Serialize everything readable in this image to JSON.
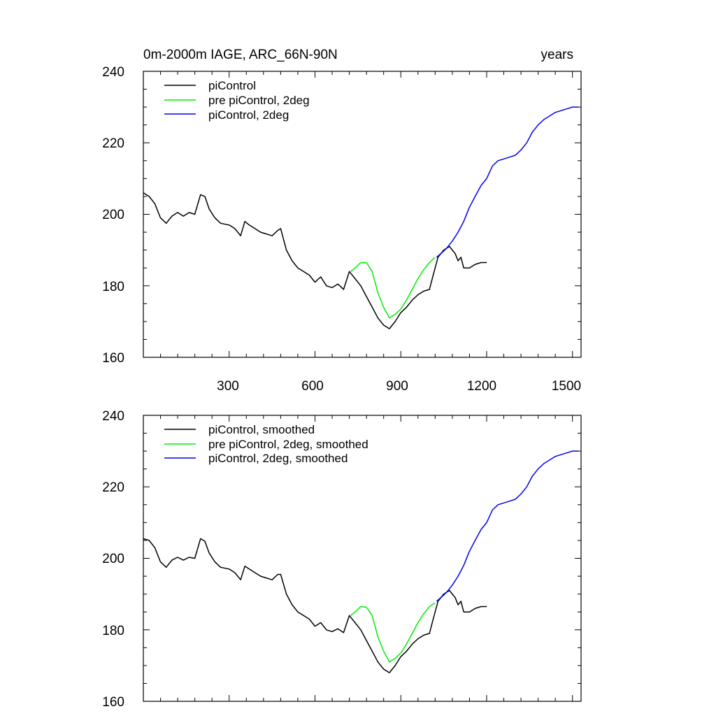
{
  "chart_data": [
    {
      "type": "line",
      "title_left": "0m-2000m IAGE, ARC_66N-90N",
      "title_right": "years",
      "xlabel": "",
      "ylabel": "",
      "xlim": [
        0,
        1530
      ],
      "ylim": [
        160,
        240
      ],
      "x_ticks": [
        300,
        600,
        900,
        1200,
        1500
      ],
      "x_tick_labels": [
        "300",
        "600",
        "900",
        "1200",
        "1500"
      ],
      "y_ticks": [
        160,
        180,
        200,
        220,
        240
      ],
      "y_tick_labels": [
        "160",
        "180",
        "200",
        "220",
        "240"
      ],
      "legend_position": "top-left",
      "series": [
        {
          "name": "piControl",
          "color": "#000000",
          "points": [
            [
              0,
              206
            ],
            [
              20,
              205
            ],
            [
              40,
              203
            ],
            [
              60,
              199
            ],
            [
              80,
              197.5
            ],
            [
              100,
              199.5
            ],
            [
              120,
              200.5
            ],
            [
              140,
              199.5
            ],
            [
              160,
              200.5
            ],
            [
              180,
              200
            ],
            [
              200,
              205.5
            ],
            [
              215,
              205
            ],
            [
              230,
              201.5
            ],
            [
              250,
              199
            ],
            [
              270,
              197.5
            ],
            [
              300,
              197
            ],
            [
              320,
              196
            ],
            [
              340,
              194
            ],
            [
              355,
              198
            ],
            [
              370,
              197
            ],
            [
              390,
              196
            ],
            [
              410,
              195
            ],
            [
              430,
              194.5
            ],
            [
              450,
              194
            ],
            [
              470,
              195.5
            ],
            [
              480,
              196
            ],
            [
              500,
              190
            ],
            [
              520,
              187
            ],
            [
              540,
              185
            ],
            [
              560,
              184
            ],
            [
              580,
              183
            ],
            [
              600,
              181
            ],
            [
              620,
              182.5
            ],
            [
              640,
              180
            ],
            [
              660,
              179.5
            ],
            [
              680,
              180.5
            ],
            [
              700,
              179
            ],
            [
              720,
              184
            ],
            [
              740,
              182
            ],
            [
              760,
              180
            ],
            [
              780,
              177
            ],
            [
              800,
              174
            ],
            [
              820,
              171
            ],
            [
              840,
              169
            ],
            [
              860,
              168
            ],
            [
              880,
              170
            ],
            [
              900,
              172.5
            ],
            [
              920,
              174
            ],
            [
              940,
              176
            ],
            [
              960,
              177.5
            ],
            [
              980,
              178.5
            ],
            [
              1000,
              179
            ],
            [
              1010,
              182
            ],
            [
              1030,
              188
            ],
            [
              1050,
              190
            ],
            [
              1070,
              191
            ],
            [
              1080,
              190
            ],
            [
              1090,
              189
            ],
            [
              1100,
              187
            ],
            [
              1110,
              188
            ],
            [
              1120,
              185
            ],
            [
              1140,
              185
            ],
            [
              1160,
              186
            ],
            [
              1180,
              186.5
            ],
            [
              1200,
              186.5
            ]
          ]
        },
        {
          "name": "pre piControl, 2deg",
          "color": "#00ee00",
          "points": [
            [
              725,
              184
            ],
            [
              740,
              185
            ],
            [
              760,
              186.5
            ],
            [
              780,
              186.5
            ],
            [
              800,
              184
            ],
            [
              820,
              178
            ],
            [
              840,
              174
            ],
            [
              860,
              171
            ],
            [
              880,
              172
            ],
            [
              900,
              173.5
            ],
            [
              920,
              176
            ],
            [
              940,
              179
            ],
            [
              960,
              182
            ],
            [
              980,
              184.5
            ],
            [
              1000,
              186.5
            ],
            [
              1020,
              188
            ]
          ]
        },
        {
          "name": "piControl, 2deg",
          "color": "#0000ee",
          "points": [
            [
              1025,
              188
            ],
            [
              1040,
              189
            ],
            [
              1060,
              190.5
            ],
            [
              1080,
              192.5
            ],
            [
              1100,
              195
            ],
            [
              1120,
              198
            ],
            [
              1140,
              202
            ],
            [
              1160,
              205
            ],
            [
              1180,
              208
            ],
            [
              1200,
              210
            ],
            [
              1220,
              213.5
            ],
            [
              1240,
              215
            ],
            [
              1260,
              215.5
            ],
            [
              1280,
              216
            ],
            [
              1300,
              216.5
            ],
            [
              1320,
              218
            ],
            [
              1340,
              220
            ],
            [
              1360,
              223
            ],
            [
              1380,
              225
            ],
            [
              1400,
              226.5
            ],
            [
              1420,
              227.5
            ],
            [
              1440,
              228.5
            ],
            [
              1460,
              229
            ],
            [
              1480,
              229.5
            ],
            [
              1500,
              230
            ],
            [
              1520,
              230
            ]
          ]
        }
      ]
    },
    {
      "type": "line",
      "xlabel": "",
      "ylabel": "",
      "xlim": [
        0,
        1530
      ],
      "ylim": [
        160,
        240
      ],
      "x_ticks": [
        300,
        600,
        900,
        1200,
        1500
      ],
      "y_ticks": [
        160,
        180,
        200,
        220,
        240
      ],
      "y_tick_labels": [
        "160",
        "180",
        "200",
        "220",
        "240"
      ],
      "legend_position": "top-left",
      "series": [
        {
          "name": "piControl, smoothed",
          "color": "#000000",
          "points": [
            [
              0,
              205.5
            ],
            [
              20,
              205
            ],
            [
              40,
              203
            ],
            [
              60,
              199
            ],
            [
              80,
              197.5
            ],
            [
              100,
              199.5
            ],
            [
              120,
              200.3
            ],
            [
              140,
              199.5
            ],
            [
              160,
              200.3
            ],
            [
              180,
              200
            ],
            [
              200,
              205.5
            ],
            [
              215,
              204.8
            ],
            [
              230,
              201.5
            ],
            [
              250,
              199
            ],
            [
              270,
              197.5
            ],
            [
              300,
              197
            ],
            [
              320,
              196
            ],
            [
              340,
              194
            ],
            [
              355,
              197.8
            ],
            [
              370,
              197
            ],
            [
              390,
              196
            ],
            [
              410,
              195
            ],
            [
              430,
              194.5
            ],
            [
              450,
              194
            ],
            [
              470,
              195.5
            ],
            [
              480,
              195.5
            ],
            [
              500,
              190
            ],
            [
              520,
              187
            ],
            [
              540,
              185
            ],
            [
              560,
              184
            ],
            [
              580,
              183
            ],
            [
              600,
              181
            ],
            [
              620,
              182
            ],
            [
              640,
              180
            ],
            [
              660,
              179.5
            ],
            [
              680,
              180.3
            ],
            [
              700,
              179.2
            ],
            [
              720,
              184
            ],
            [
              740,
              182
            ],
            [
              760,
              180
            ],
            [
              780,
              177
            ],
            [
              800,
              174
            ],
            [
              820,
              171
            ],
            [
              840,
              169
            ],
            [
              860,
              168
            ],
            [
              880,
              170
            ],
            [
              900,
              172.5
            ],
            [
              920,
              174
            ],
            [
              940,
              176
            ],
            [
              960,
              177.5
            ],
            [
              980,
              178.5
            ],
            [
              1000,
              179
            ],
            [
              1010,
              182
            ],
            [
              1030,
              188
            ],
            [
              1050,
              190
            ],
            [
              1070,
              191
            ],
            [
              1080,
              190
            ],
            [
              1090,
              189
            ],
            [
              1100,
              187
            ],
            [
              1110,
              188
            ],
            [
              1120,
              185
            ],
            [
              1140,
              185
            ],
            [
              1160,
              186
            ],
            [
              1180,
              186.5
            ],
            [
              1200,
              186.5
            ]
          ]
        },
        {
          "name": "pre piControl, 2deg, smoothed",
          "color": "#00ee00",
          "points": [
            [
              725,
              184
            ],
            [
              740,
              185
            ],
            [
              760,
              186.5
            ],
            [
              780,
              186.3
            ],
            [
              800,
              184
            ],
            [
              820,
              178
            ],
            [
              840,
              174
            ],
            [
              860,
              171
            ],
            [
              880,
              172
            ],
            [
              900,
              173.5
            ],
            [
              920,
              176
            ],
            [
              940,
              179
            ],
            [
              960,
              182
            ],
            [
              980,
              184.5
            ],
            [
              1000,
              186.5
            ],
            [
              1020,
              187.5
            ]
          ]
        },
        {
          "name": "piControl, 2deg, smoothed",
          "color": "#0000ee",
          "points": [
            [
              1025,
              188
            ],
            [
              1040,
              189
            ],
            [
              1060,
              190.5
            ],
            [
              1080,
              192.5
            ],
            [
              1100,
              195
            ],
            [
              1120,
              198
            ],
            [
              1140,
              202
            ],
            [
              1160,
              205
            ],
            [
              1180,
              208
            ],
            [
              1200,
              210
            ],
            [
              1220,
              213.5
            ],
            [
              1240,
              215
            ],
            [
              1260,
              215.5
            ],
            [
              1280,
              216
            ],
            [
              1300,
              216.5
            ],
            [
              1320,
              218
            ],
            [
              1340,
              220
            ],
            [
              1360,
              223
            ],
            [
              1380,
              225
            ],
            [
              1400,
              226.5
            ],
            [
              1420,
              227.5
            ],
            [
              1440,
              228.5
            ],
            [
              1460,
              229
            ],
            [
              1480,
              229.5
            ],
            [
              1500,
              230
            ],
            [
              1520,
              230
            ]
          ]
        }
      ]
    }
  ]
}
